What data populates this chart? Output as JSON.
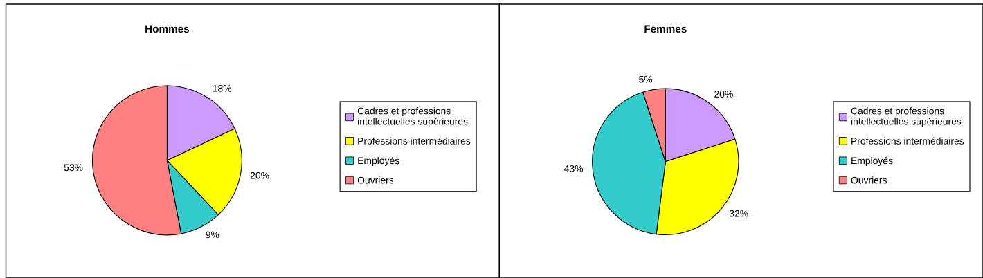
{
  "chart_data": [
    {
      "type": "pie",
      "title": "Hommes",
      "categories": [
        "Cadres et professions\nintellectuelles supérieures",
        "Professions intermédiaires",
        "Employés",
        "Ouvriers"
      ],
      "values": [
        18,
        20,
        9,
        53
      ],
      "colors": [
        "#cc99ff",
        "#ffff00",
        "#33cccc",
        "#ff8080"
      ],
      "value_labels": [
        "18%",
        "20%",
        "9%",
        "53%"
      ],
      "legend": "right"
    },
    {
      "type": "pie",
      "title": "Femmes",
      "categories": [
        "Cadres et professions\nintellectuelles supérieures",
        "Professions intermédiaires",
        "Employés",
        "Ouvriers"
      ],
      "values": [
        20,
        32,
        43,
        5
      ],
      "colors": [
        "#cc99ff",
        "#ffff00",
        "#33cccc",
        "#ff8080"
      ],
      "value_labels": [
        "20%",
        "32%",
        "43%",
        "5%"
      ],
      "legend": "right"
    }
  ]
}
